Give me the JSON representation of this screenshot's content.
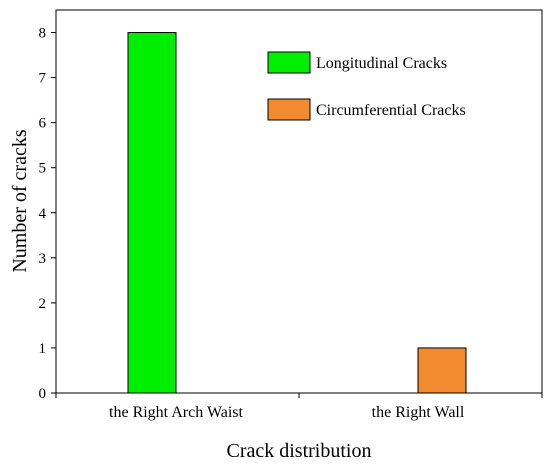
{
  "chart_data": {
    "type": "bar",
    "title": "",
    "xlabel": "Crack distribution",
    "ylabel": "Number of cracks",
    "categories": [
      "the Right Arch Waist",
      "the Right Wall"
    ],
    "ylim": [
      0,
      8.5
    ],
    "yticks": [
      0,
      1,
      2,
      3,
      4,
      5,
      6,
      7,
      8
    ],
    "series": [
      {
        "name": "Longitudinal Cracks",
        "color": "#00ee00",
        "values": [
          8,
          0
        ]
      },
      {
        "name": "Circumferential Cracks",
        "color": "#f28a30",
        "values": [
          0,
          1
        ]
      }
    ],
    "legend": "top-right",
    "grid": false
  }
}
